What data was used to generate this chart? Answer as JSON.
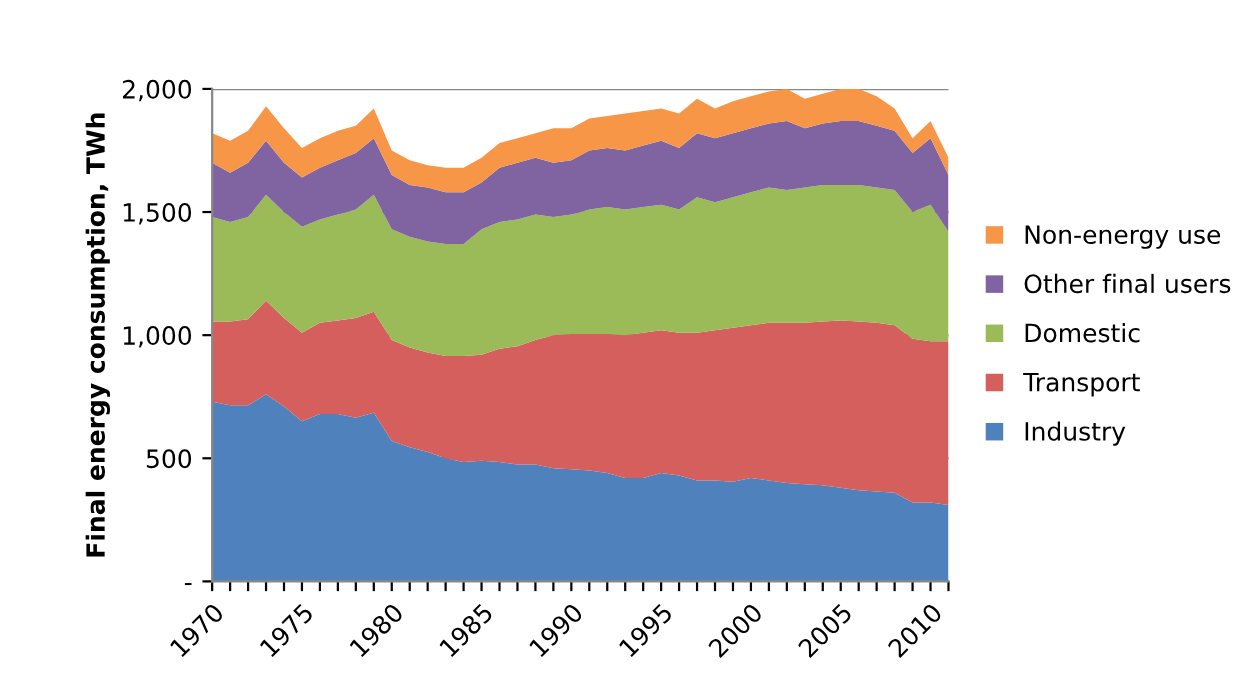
{
  "chart_data": {
    "type": "area",
    "stacked": true,
    "ylabel": "Final energy consumption, TWh",
    "x": [
      1970,
      1971,
      1972,
      1973,
      1974,
      1975,
      1976,
      1977,
      1978,
      1979,
      1980,
      1981,
      1982,
      1983,
      1984,
      1985,
      1986,
      1987,
      1988,
      1989,
      1990,
      1991,
      1992,
      1993,
      1994,
      1995,
      1996,
      1997,
      1998,
      1999,
      2000,
      2001,
      2002,
      2003,
      2004,
      2005,
      2006,
      2007,
      2008,
      2009,
      2010,
      2011
    ],
    "series": [
      {
        "name": "Industry",
        "color": "#4f81bd",
        "values": [
          730,
          715,
          715,
          760,
          710,
          650,
          680,
          680,
          665,
          685,
          570,
          545,
          525,
          500,
          485,
          490,
          485,
          475,
          475,
          460,
          455,
          450,
          440,
          420,
          420,
          440,
          430,
          410,
          410,
          405,
          420,
          410,
          400,
          395,
          390,
          380,
          370,
          365,
          360,
          320,
          320,
          310
        ]
      },
      {
        "name": "Transport",
        "color": "#d55f5c",
        "values": [
          325,
          340,
          350,
          380,
          360,
          360,
          370,
          380,
          405,
          410,
          410,
          405,
          405,
          415,
          430,
          430,
          460,
          480,
          505,
          540,
          550,
          555,
          565,
          580,
          590,
          580,
          580,
          600,
          610,
          625,
          620,
          640,
          650,
          655,
          665,
          680,
          685,
          685,
          680,
          665,
          655,
          665
        ]
      },
      {
        "name": "Domestic",
        "color": "#9bbb59",
        "values": [
          425,
          405,
          415,
          430,
          430,
          430,
          420,
          430,
          440,
          475,
          450,
          450,
          450,
          455,
          455,
          510,
          515,
          515,
          510,
          480,
          485,
          505,
          515,
          510,
          510,
          510,
          500,
          550,
          520,
          530,
          540,
          550,
          540,
          550,
          555,
          550,
          555,
          550,
          550,
          515,
          555,
          445
        ]
      },
      {
        "name": "Other final users",
        "color": "#8064a2",
        "values": [
          220,
          200,
          220,
          220,
          200,
          200,
          210,
          220,
          230,
          230,
          220,
          210,
          220,
          210,
          210,
          190,
          220,
          230,
          230,
          220,
          220,
          240,
          240,
          240,
          250,
          260,
          250,
          260,
          260,
          260,
          260,
          260,
          280,
          240,
          250,
          260,
          260,
          250,
          240,
          240,
          270,
          230
        ]
      },
      {
        "name": "Non-energy use",
        "color": "#f79646",
        "values": [
          120,
          130,
          130,
          140,
          140,
          120,
          120,
          120,
          110,
          120,
          100,
          100,
          90,
          100,
          100,
          100,
          100,
          100,
          100,
          140,
          130,
          130,
          130,
          150,
          140,
          130,
          140,
          140,
          120,
          130,
          130,
          130,
          130,
          120,
          120,
          130,
          130,
          120,
          90,
          60,
          70,
          70
        ]
      }
    ],
    "xlim": [
      1970,
      2011
    ],
    "xticks": [
      1970,
      {
        "value": 1971,
        "label": null
      },
      {
        "value": 1972,
        "label": null
      },
      {
        "value": 1973,
        "label": null
      },
      {
        "value": 1974,
        "label": null
      },
      1975,
      {
        "value": 1976,
        "label": null
      },
      {
        "value": 1977,
        "label": null
      },
      {
        "value": 1978,
        "label": null
      },
      {
        "value": 1979,
        "label": null
      },
      1980,
      {
        "value": 1981,
        "label": null
      },
      {
        "value": 1982,
        "label": null
      },
      {
        "value": 1983,
        "label": null
      },
      {
        "value": 1984,
        "label": null
      },
      1985,
      {
        "value": 1986,
        "label": null
      },
      {
        "value": 1987,
        "label": null
      },
      {
        "value": 1988,
        "label": null
      },
      {
        "value": 1989,
        "label": null
      },
      1990,
      {
        "value": 1991,
        "label": null
      },
      {
        "value": 1992,
        "label": null
      },
      {
        "value": 1993,
        "label": null
      },
      {
        "value": 1994,
        "label": null
      },
      1995,
      {
        "value": 1996,
        "label": null
      },
      {
        "value": 1997,
        "label": null
      },
      {
        "value": 1998,
        "label": null
      },
      {
        "value": 1999,
        "label": null
      },
      2000,
      {
        "value": 2001,
        "label": null
      },
      {
        "value": 2002,
        "label": null
      },
      {
        "value": 2003,
        "label": null
      },
      {
        "value": 2004,
        "label": null
      },
      2005,
      {
        "value": 2006,
        "label": null
      },
      {
        "value": 2007,
        "label": null
      },
      {
        "value": 2008,
        "label": null
      },
      {
        "value": 2009,
        "label": null
      },
      2010,
      {
        "value": 2011,
        "label": null
      }
    ],
    "ylim": [
      0,
      2000
    ],
    "yticks": [
      {
        "value": 0,
        "label": "-"
      },
      500,
      {
        "value": 1000,
        "label": "1,000"
      },
      {
        "value": 1500,
        "label": "1,500"
      },
      {
        "value": 2000,
        "label": "2,000"
      }
    ],
    "grid": "y",
    "legend": "right"
  }
}
